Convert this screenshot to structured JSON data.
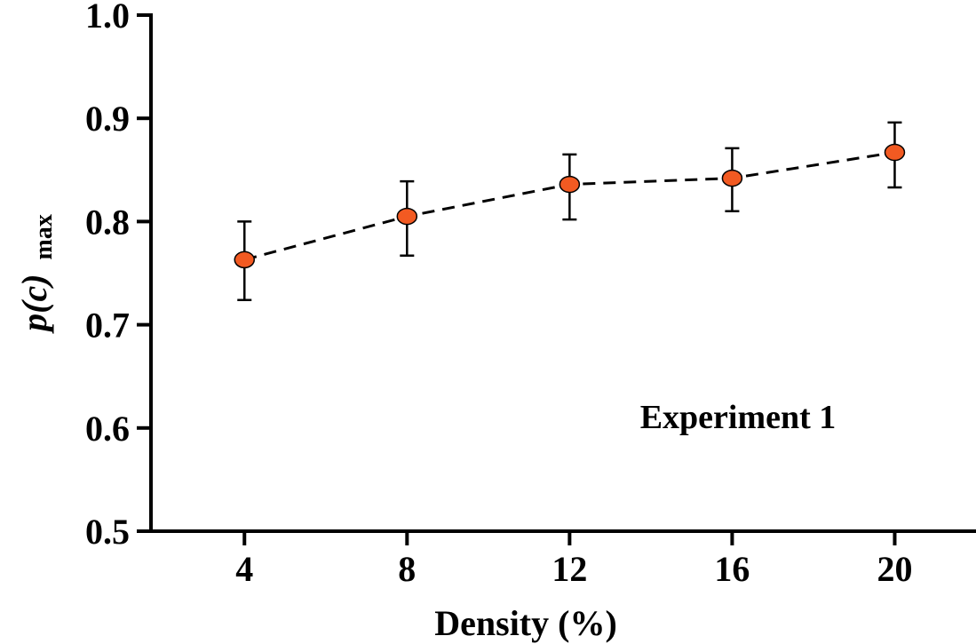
{
  "chart_data": {
    "type": "scatter",
    "title": "",
    "xlabel": "Density (%)",
    "ylabel": {
      "main": "p(c)",
      "subscript": "max"
    },
    "annotation": "Experiment 1",
    "x_ticks": [
      "4",
      "8",
      "12",
      "16",
      "20"
    ],
    "y_ticks": [
      "0.5",
      "0.6",
      "0.7",
      "0.8",
      "0.9",
      "1.0"
    ],
    "xlim": [
      1.7,
      22
    ],
    "ylim": [
      0.5,
      1.0
    ],
    "grid": false,
    "legend": "none",
    "series": [
      {
        "x": [
          4,
          8,
          12,
          16,
          20
        ],
        "values": [
          0.763,
          0.805,
          0.836,
          0.842,
          0.867
        ],
        "err_upper": [
          0.8,
          0.839,
          0.865,
          0.871,
          0.896
        ],
        "err_lower": [
          0.724,
          0.767,
          0.802,
          0.81,
          0.833
        ],
        "line_style": "dashed",
        "marker_color": "#f25a22",
        "marker_edge_color": "#000000",
        "line_color": "#000000"
      }
    ]
  }
}
